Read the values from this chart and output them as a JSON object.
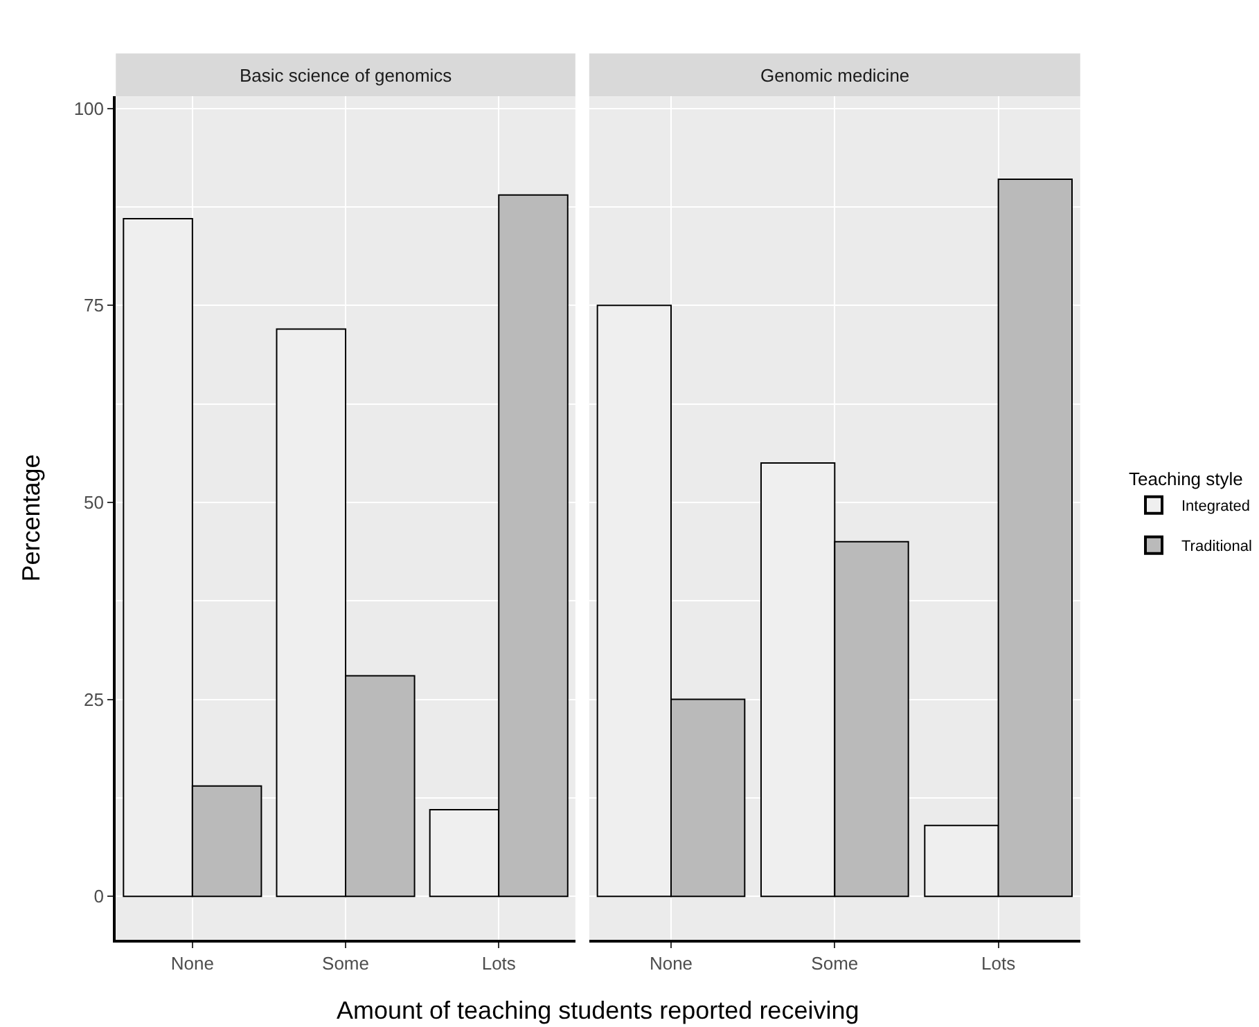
{
  "chart_data": [
    {
      "type": "bar",
      "title": "Basic science of genomics",
      "xlabel": "Amount of teaching students reported receiving",
      "ylabel": "Percentage",
      "legend_title": "Teaching style",
      "legend": "right",
      "grid": true,
      "categories": [
        "None",
        "Some",
        "Lots"
      ],
      "series": [
        {
          "name": "Integrated",
          "color": "#efefef",
          "values": [
            86,
            72,
            11
          ]
        },
        {
          "name": "Traditional",
          "color": "#bababa",
          "values": [
            14,
            28,
            89
          ]
        }
      ],
      "ylim": [
        -5.5,
        101.5
      ],
      "yticks": [
        0,
        25,
        50,
        75,
        100
      ]
    },
    {
      "type": "bar",
      "title": "Genomic medicine",
      "grid": true,
      "tick_labels": "x",
      "categories": [
        "None",
        "Some",
        "Lots"
      ],
      "series": [
        {
          "color": "#efefef",
          "values": [
            75,
            55,
            9
          ]
        },
        {
          "color": "#bababa",
          "values": [
            25,
            45,
            91
          ]
        }
      ],
      "ylim": [
        -5.5,
        101.5
      ],
      "yticks": [
        0,
        25,
        50,
        75,
        100
      ]
    }
  ]
}
